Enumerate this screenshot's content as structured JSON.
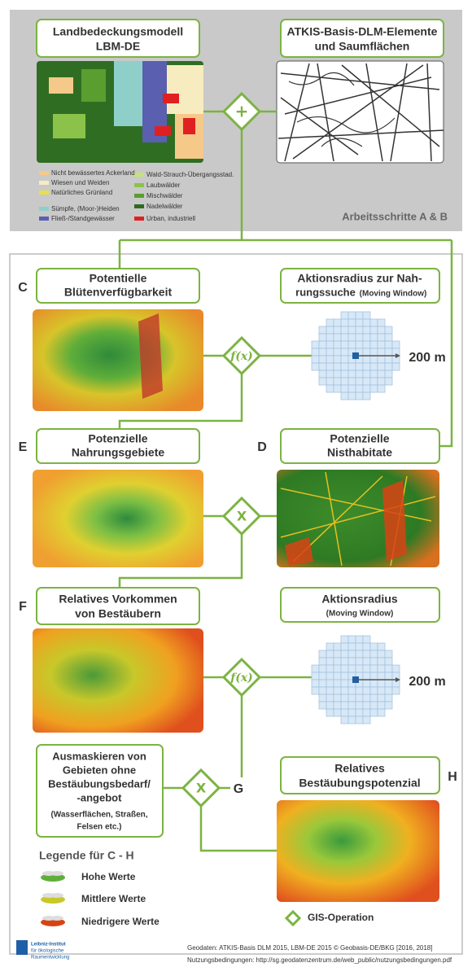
{
  "top": {
    "box1": [
      "Landbedeckungsmodell",
      "LBM-DE"
    ],
    "box2": [
      "ATKIS-Basis-DLM-Elemente",
      "und Saumflächen"
    ],
    "operator": "+",
    "legend": [
      "Nicht bewässertes Ackerland",
      "Wiesen und Weiden",
      "Natürliches Grünland",
      "Sümpfe, (Moor-)Heiden",
      "Fließ-/Standgewässer",
      "Wald-Strauch-Übergangsstad.",
      "Laubwälder",
      "Mischwälder",
      "Nadelwälder",
      "Urban, industriell"
    ],
    "caption": "Arbeitsschritte A & B"
  },
  "steps": {
    "c": {
      "letter": "C",
      "lines": [
        "Potentielle",
        "Blütenverfügbarkeit"
      ]
    },
    "radius1": {
      "lines": [
        "Aktionsradius zur Nah-",
        "rungssuche"
      ],
      "sub": "(Moving Window)",
      "distance": "200 m"
    },
    "op1": "f(x)",
    "e": {
      "letter": "E",
      "lines": [
        "Potenzielle",
        "Nahrungsgebiete"
      ]
    },
    "d": {
      "letter": "D",
      "lines": [
        "Potenzielle",
        "Nisthabitate"
      ]
    },
    "op2": "X",
    "f": {
      "letter": "F",
      "lines": [
        "Relatives Vorkommen",
        "von Bestäubern"
      ]
    },
    "radius2": {
      "lines": [
        "Aktionsradius"
      ],
      "sub": "(Moving Window)",
      "distance": "200 m"
    },
    "op3": "f(x)",
    "mask": {
      "lines": [
        "Ausmaskieren von",
        "Gebieten ohne",
        "Bestäubungsbedarf/",
        "-angebot"
      ],
      "sub": [
        "(Wasserflächen, Straßen,",
        "Felsen etc.)"
      ]
    },
    "op4": "X",
    "g": "G",
    "h": {
      "letter": "H",
      "lines": [
        "Relatives",
        "Bestäubungspotenzial"
      ]
    }
  },
  "legend": {
    "title": "Legende für C - H",
    "items": [
      "Hohe Werte",
      "Mittlere Werte",
      "Niedrigere Werte"
    ],
    "gis": "GIS-Operation"
  },
  "footer": {
    "institute": [
      "Leibniz-Institut",
      "für ökologische",
      "Raumentwicklung"
    ],
    "source": "Geodaten: ATKIS-Basis DLM 2015, LBM-DE 2015 © Geobasis-DE/BKG [2016, 2018]",
    "terms": "Nutzungsbedingungen: http://sg.geodatenzentrum.de/web_public/nutzungsbedingungen.pdf"
  }
}
